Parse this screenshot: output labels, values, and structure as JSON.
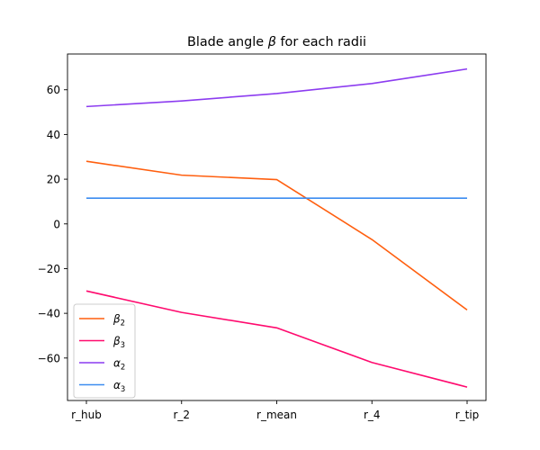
{
  "chart_data": {
    "type": "line",
    "title": "Blade angle β for each radii",
    "title_parts": {
      "prefix": "Blade angle ",
      "symbol": "β",
      "suffix": " for each radii"
    },
    "xlabel": "",
    "ylabel": "",
    "categories": [
      "r_hub",
      "r_2",
      "r_mean",
      "r_4",
      "r_tip"
    ],
    "y_ticks": [
      60,
      40,
      20,
      0,
      -20,
      -40,
      -60
    ],
    "y_tick_labels": [
      "60",
      "40",
      "20",
      "0",
      "−20",
      "−40",
      "−60"
    ],
    "ylim": [
      -79,
      76
    ],
    "grid": false,
    "legend_position": "lower-left",
    "series": [
      {
        "name": "β2",
        "symbol": "β",
        "sub": "2",
        "color": "#ff5f0f",
        "values": [
          28,
          21.8,
          19.8,
          -7,
          -38.5
        ]
      },
      {
        "name": "β3",
        "symbol": "β",
        "sub": "3",
        "color": "#ff0a6e",
        "values": [
          -30,
          -39.6,
          -46.5,
          -62,
          -73
        ]
      },
      {
        "name": "α2",
        "symbol": "α",
        "sub": "2",
        "color": "#8c3cf0",
        "values": [
          52.5,
          55,
          58.3,
          62.8,
          69.3
        ]
      },
      {
        "name": "α3",
        "symbol": "α",
        "sub": "3",
        "color": "#3c8cf0",
        "values": [
          11.5,
          11.5,
          11.5,
          11.5,
          11.5
        ]
      }
    ]
  }
}
